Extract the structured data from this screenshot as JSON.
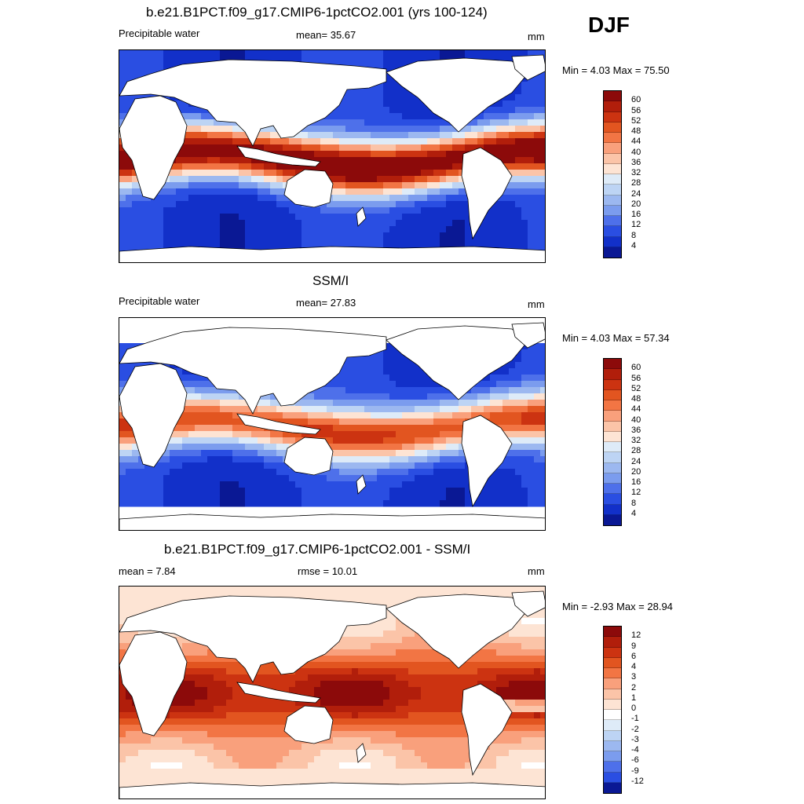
{
  "season": "DJF",
  "panels": [
    {
      "title": "b.e21.B1PCT.f09_g17.CMIP6-1pctCO2.001 (yrs 100-124)",
      "left_label": "Precipitable water",
      "center_label": "mean=  35.67",
      "units": "mm",
      "minmax": "Min =   4.03 Max =  75.50",
      "levels": [
        "60",
        "56",
        "52",
        "48",
        "44",
        "40",
        "36",
        "32",
        "28",
        "24",
        "20",
        "16",
        "12",
        "8",
        "4"
      ],
      "colors": [
        "#8c0a0a",
        "#b11e0b",
        "#cc3311",
        "#e25520",
        "#f27544",
        "#f9a07c",
        "#fbc4a8",
        "#fde4d4",
        "#deebf8",
        "#bdd4f4",
        "#9cb8f0",
        "#7b9cee",
        "#4e70ea",
        "#2a4ee2",
        "#1230c9",
        "#0a1894"
      ],
      "map_intensity": 1.0,
      "map_style": "model"
    },
    {
      "title": "SSM/I",
      "left_label": "Precipitable water",
      "center_label": "mean=  27.83",
      "units": "mm",
      "minmax": "Min =   4.03 Max =  57.34",
      "levels": [
        "60",
        "56",
        "52",
        "48",
        "44",
        "40",
        "36",
        "32",
        "28",
        "24",
        "20",
        "16",
        "12",
        "8",
        "4"
      ],
      "colors": [
        "#8c0a0a",
        "#b11e0b",
        "#cc3311",
        "#e25520",
        "#f27544",
        "#f9a07c",
        "#fbc4a8",
        "#fde4d4",
        "#deebf8",
        "#bdd4f4",
        "#9cb8f0",
        "#7b9cee",
        "#4e70ea",
        "#2a4ee2",
        "#1230c9",
        "#0a1894"
      ],
      "map_intensity": 0.75,
      "map_style": "obs"
    },
    {
      "title": "b.e21.B1PCT.f09_g17.CMIP6-1pctCO2.001 - SSM/I",
      "left_label": "mean =   7.84",
      "center_label": "rmse =  10.01",
      "units": "mm",
      "minmax": "Min =  -2.93 Max =  28.94",
      "levels": [
        "12",
        "9",
        "6",
        "4",
        "3",
        "2",
        "1",
        "0",
        "-1",
        "-2",
        "-3",
        "-4",
        "-6",
        "-9",
        "-12"
      ],
      "colors": [
        "#8c0a0a",
        "#b11e0b",
        "#cc3311",
        "#e25520",
        "#f27544",
        "#f9a07c",
        "#fbc4a8",
        "#fde4d4",
        "#ffffff",
        "#deebf8",
        "#bdd4f4",
        "#9cb8f0",
        "#7b9cee",
        "#4e70ea",
        "#2a4ee2",
        "#0a1894"
      ],
      "map_intensity": 1.0,
      "map_style": "diff"
    }
  ]
}
